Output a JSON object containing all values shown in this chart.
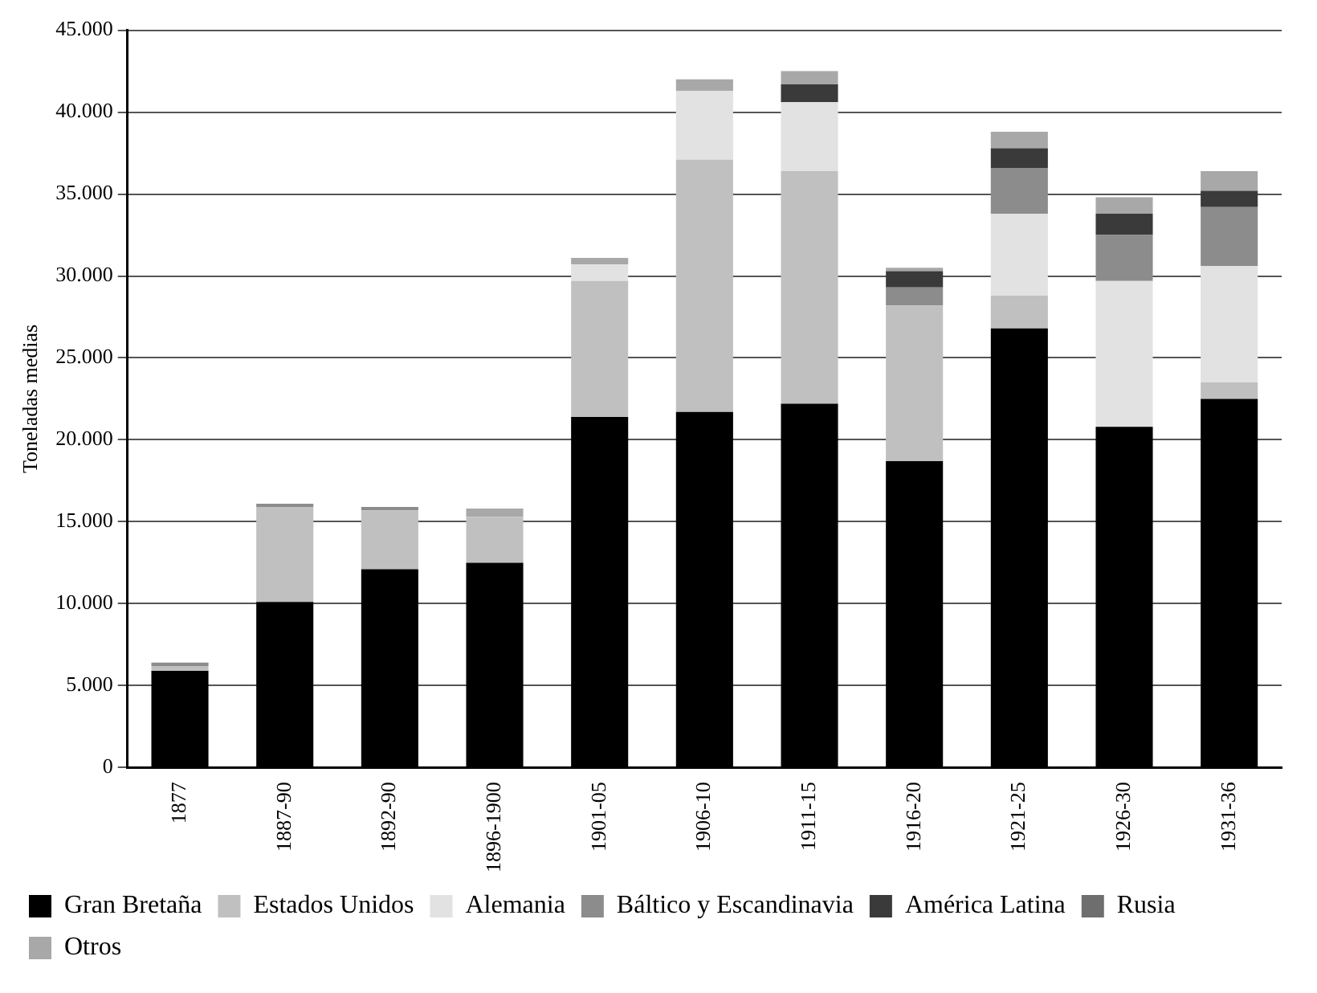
{
  "chart_data": {
    "type": "bar",
    "stacked": true,
    "ylabel": "Toneladas medias",
    "categories": [
      "1877",
      "1887-90",
      "1892-90",
      "1896-1900",
      "1901-05",
      "1906-10",
      "1911-15",
      "1916-20",
      "1921-25",
      "1926-30",
      "1931-36"
    ],
    "series": [
      {
        "name": "Gran Bretaña",
        "color": "#000000",
        "values": [
          5900,
          10100,
          12100,
          12500,
          21400,
          21700,
          22200,
          18700,
          26800,
          20800,
          22500
        ]
      },
      {
        "name": "Estados Unidos",
        "color": "#c0c0c0",
        "values": [
          300,
          5800,
          3600,
          2800,
          8300,
          15400,
          14200,
          9500,
          2000,
          0,
          1000
        ]
      },
      {
        "name": "Alemania",
        "color": "#e2e2e2",
        "values": [
          0,
          0,
          0,
          0,
          1000,
          4200,
          4200,
          0,
          5000,
          8900,
          7100
        ]
      },
      {
        "name": "Báltico y Escandinavia",
        "color": "#8c8c8c",
        "values": [
          200,
          200,
          200,
          0,
          0,
          0,
          0,
          1100,
          2800,
          2800,
          3600
        ]
      },
      {
        "name": "América Latina",
        "color": "#3a3a3a",
        "values": [
          0,
          0,
          0,
          0,
          0,
          0,
          1100,
          1000,
          1200,
          1300,
          1000
        ]
      },
      {
        "name": "Rusia",
        "color": "#6e6e6e",
        "values": [
          0,
          0,
          0,
          0,
          0,
          0,
          0,
          0,
          0,
          0,
          0
        ]
      },
      {
        "name": "Otros",
        "color": "#a8a8a8",
        "values": [
          0,
          0,
          0,
          500,
          400,
          700,
          800,
          200,
          1000,
          1000,
          1200
        ]
      }
    ],
    "ylim": [
      0,
      45000
    ],
    "yticks": [
      {
        "value": 0,
        "label": "0"
      },
      {
        "value": 5000,
        "label": "5.000"
      },
      {
        "value": 10000,
        "label": "10.000"
      },
      {
        "value": 15000,
        "label": "15.000"
      },
      {
        "value": 20000,
        "label": "20.000"
      },
      {
        "value": 25000,
        "label": "25.000"
      },
      {
        "value": 30000,
        "label": "30.000"
      },
      {
        "value": 35000,
        "label": "35.000"
      },
      {
        "value": 40000,
        "label": "40.000"
      },
      {
        "value": 45000,
        "label": "45.000"
      }
    ],
    "grid": "y",
    "legend": "bottom"
  }
}
